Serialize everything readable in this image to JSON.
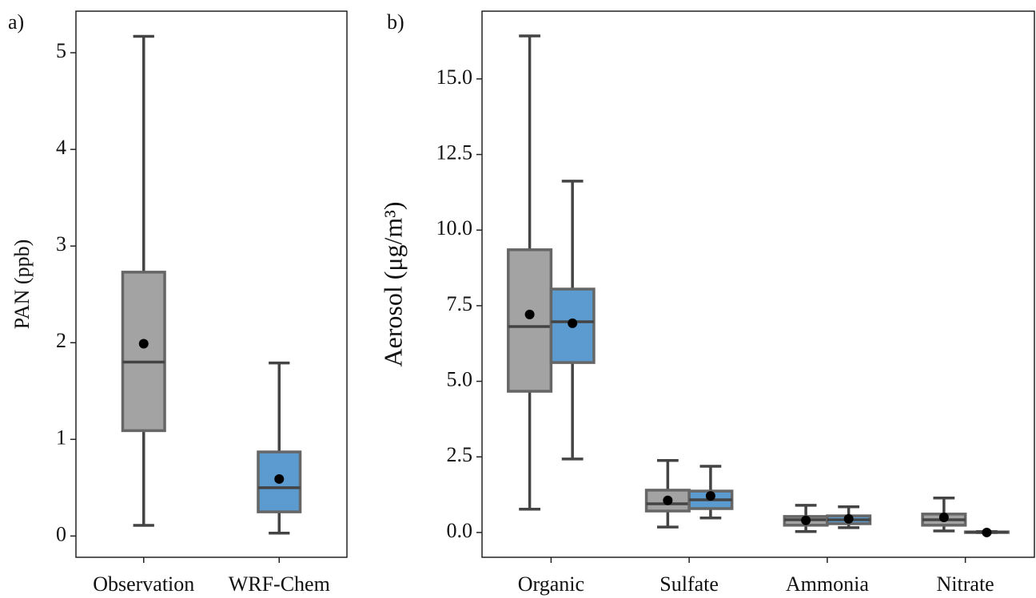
{
  "chart_data": [
    {
      "type": "box",
      "panel_label": "a)",
      "ylabel": "PAN (ppb)",
      "categories": [
        "Observation",
        "WRF-Chem"
      ],
      "series": [
        {
          "colors": [
            "#a3a3a3",
            "#5b9bd0"
          ],
          "whislo": [
            0.11,
            0.03
          ],
          "q1": [
            1.09,
            0.25
          ],
          "med": [
            1.8,
            0.5
          ],
          "q3": [
            2.73,
            0.87
          ],
          "whishi": [
            5.17,
            1.79
          ],
          "mean": [
            1.99,
            0.59
          ]
        }
      ],
      "ylim": [
        -0.22,
        5.43
      ],
      "yticks": [
        0,
        1,
        2,
        3,
        4,
        5
      ]
    },
    {
      "type": "box",
      "panel_label": "b)",
      "ylabel": "Aerosol (μg/m³)",
      "categories": [
        "Organic",
        "Sulfate",
        "Ammonia",
        "Nitrate"
      ],
      "series": [
        {
          "color": "#a3a3a3",
          "whislo": [
            0.77,
            0.18,
            0.03,
            0.05
          ],
          "q1": [
            4.67,
            0.71,
            0.24,
            0.24
          ],
          "med": [
            6.81,
            0.95,
            0.42,
            0.42
          ],
          "q3": [
            9.35,
            1.4,
            0.53,
            0.61
          ],
          "whishi": [
            16.42,
            2.38,
            0.9,
            1.14
          ],
          "mean": [
            7.21,
            1.06,
            0.4,
            0.5
          ]
        },
        {
          "color": "#5b9bd0",
          "whislo": [
            2.43,
            0.48,
            0.16,
            0.0
          ],
          "q1": [
            5.62,
            0.79,
            0.29,
            0.0
          ],
          "med": [
            6.97,
            1.08,
            0.42,
            0.01
          ],
          "q3": [
            8.05,
            1.37,
            0.55,
            0.02
          ],
          "whishi": [
            11.62,
            2.19,
            0.85,
            0.03
          ],
          "mean": [
            6.92,
            1.21,
            0.45,
            0.0
          ]
        }
      ],
      "ylim": [
        -0.82,
        17.24
      ],
      "yticks": [
        {
          "value": 0,
          "label": "0.0"
        },
        2.5,
        {
          "value": 5,
          "label": "5.0"
        },
        7.5,
        {
          "value": 10,
          "label": "10.0"
        },
        12.5,
        {
          "value": 15,
          "label": "15.0"
        }
      ]
    }
  ]
}
